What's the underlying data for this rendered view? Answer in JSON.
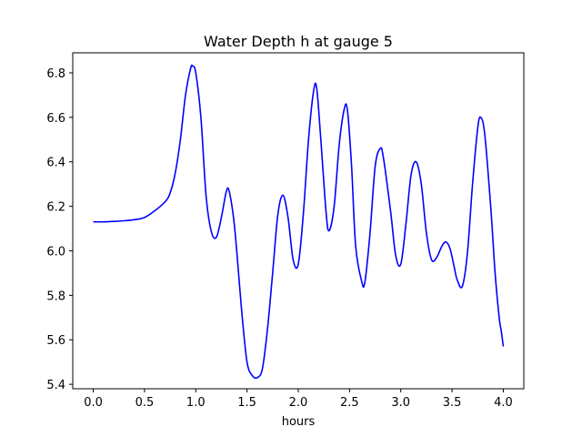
{
  "chart_data": {
    "type": "line",
    "title": "Water Depth h at gauge 5",
    "xlabel": "hours",
    "ylabel": "",
    "xlim": [
      -0.2,
      4.2
    ],
    "ylim": [
      5.38,
      6.89
    ],
    "xticks": [
      0.0,
      0.5,
      1.0,
      1.5,
      2.0,
      2.5,
      3.0,
      3.5,
      4.0
    ],
    "xtick_labels": [
      "0.0",
      "0.5",
      "1.0",
      "1.5",
      "2.0",
      "2.5",
      "3.0",
      "3.5",
      "4.0"
    ],
    "yticks": [
      5.4,
      5.6,
      5.8,
      6.0,
      6.2,
      6.4,
      6.6,
      6.8
    ],
    "ytick_labels": [
      "5.4",
      "5.6",
      "5.8",
      "6.0",
      "6.2",
      "6.4",
      "6.6",
      "6.8"
    ],
    "grid": false,
    "series": [
      {
        "color": "#0000ff",
        "x": [
          0.0,
          0.1,
          0.2,
          0.3,
          0.4,
          0.5,
          0.6,
          0.7,
          0.75,
          0.8,
          0.85,
          0.9,
          0.95,
          0.97,
          1.0,
          1.05,
          1.1,
          1.15,
          1.2,
          1.25,
          1.3,
          1.33,
          1.38,
          1.45,
          1.5,
          1.55,
          1.6,
          1.65,
          1.7,
          1.75,
          1.8,
          1.85,
          1.9,
          1.95,
          2.0,
          2.05,
          2.1,
          2.15,
          2.18,
          2.22,
          2.27,
          2.3,
          2.35,
          2.4,
          2.45,
          2.48,
          2.52,
          2.56,
          2.62,
          2.65,
          2.7,
          2.75,
          2.8,
          2.83,
          2.9,
          2.95,
          3.0,
          3.05,
          3.1,
          3.15,
          3.2,
          3.25,
          3.3,
          3.35,
          3.4,
          3.44,
          3.48,
          3.52,
          3.55,
          3.6,
          3.65,
          3.7,
          3.75,
          3.78,
          3.82,
          3.88,
          3.92,
          3.96,
          3.98,
          4.0
        ],
        "y": [
          6.13,
          6.13,
          6.132,
          6.135,
          6.14,
          6.15,
          6.18,
          6.22,
          6.26,
          6.35,
          6.5,
          6.7,
          6.82,
          6.83,
          6.8,
          6.6,
          6.25,
          6.09,
          6.06,
          6.15,
          6.27,
          6.26,
          6.1,
          5.72,
          5.5,
          5.44,
          5.43,
          5.47,
          5.65,
          5.9,
          6.16,
          6.25,
          6.15,
          5.96,
          5.94,
          6.17,
          6.5,
          6.72,
          6.73,
          6.5,
          6.18,
          6.09,
          6.2,
          6.48,
          6.64,
          6.63,
          6.38,
          6.02,
          5.86,
          5.86,
          6.08,
          6.38,
          6.46,
          6.42,
          6.18,
          5.98,
          5.94,
          6.12,
          6.34,
          6.4,
          6.3,
          6.08,
          5.96,
          5.97,
          6.02,
          6.04,
          6.01,
          5.93,
          5.87,
          5.84,
          5.99,
          6.3,
          6.55,
          6.6,
          6.52,
          6.18,
          5.9,
          5.7,
          5.64,
          5.57
        ]
      }
    ]
  }
}
